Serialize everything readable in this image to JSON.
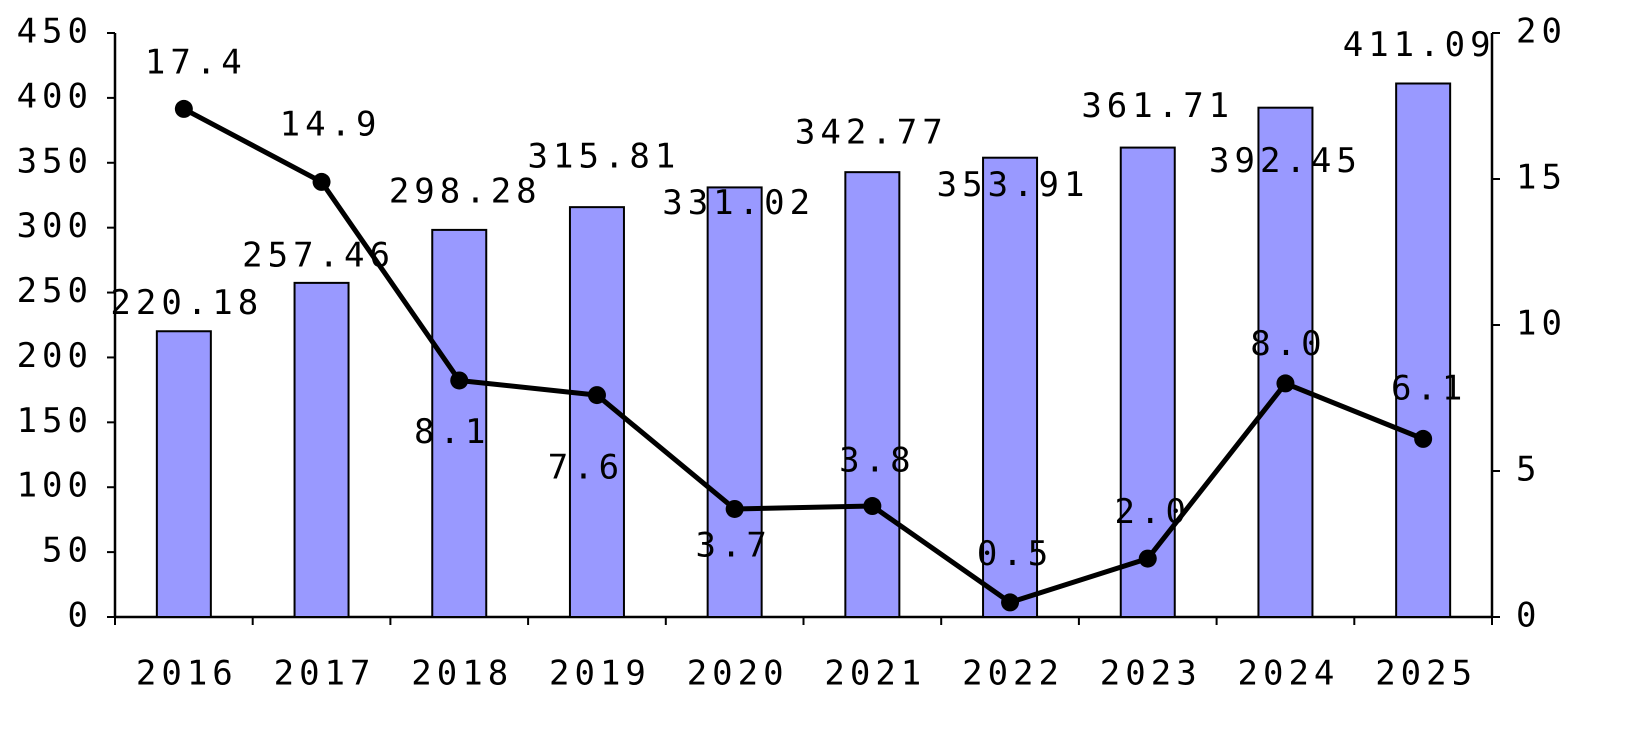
{
  "chart_data": {
    "type": "combo",
    "categories": [
      "2016",
      "2017",
      "2018",
      "2019",
      "2020",
      "2021",
      "2022",
      "2023",
      "2024",
      "2025"
    ],
    "series": [
      {
        "type": "bar",
        "color": "#9999ff",
        "values": [
          220.18,
          257.46,
          298.28,
          315.81,
          331.02,
          342.77,
          353.91,
          361.71,
          392.45,
          411.09
        ]
      },
      {
        "type": "line",
        "color": "#000000",
        "axis": "y2",
        "values": [
          17.4,
          14.9,
          8.1,
          7.6,
          3.7,
          3.8,
          0.5,
          2.0,
          8.0,
          6.1
        ],
        "value_labels": [
          "17.4",
          "14.9",
          "8.1",
          "7.6",
          "3.7",
          "3.8",
          "0.5",
          "2.0",
          "8.0",
          "6.1"
        ]
      }
    ],
    "ylim": [
      0,
      450
    ],
    "yticks": [
      0,
      50,
      100,
      150,
      200,
      250,
      300,
      350,
      400,
      450
    ],
    "y2lim": [
      0,
      20
    ],
    "y2ticks": [
      0,
      5,
      10,
      15,
      20
    ]
  }
}
